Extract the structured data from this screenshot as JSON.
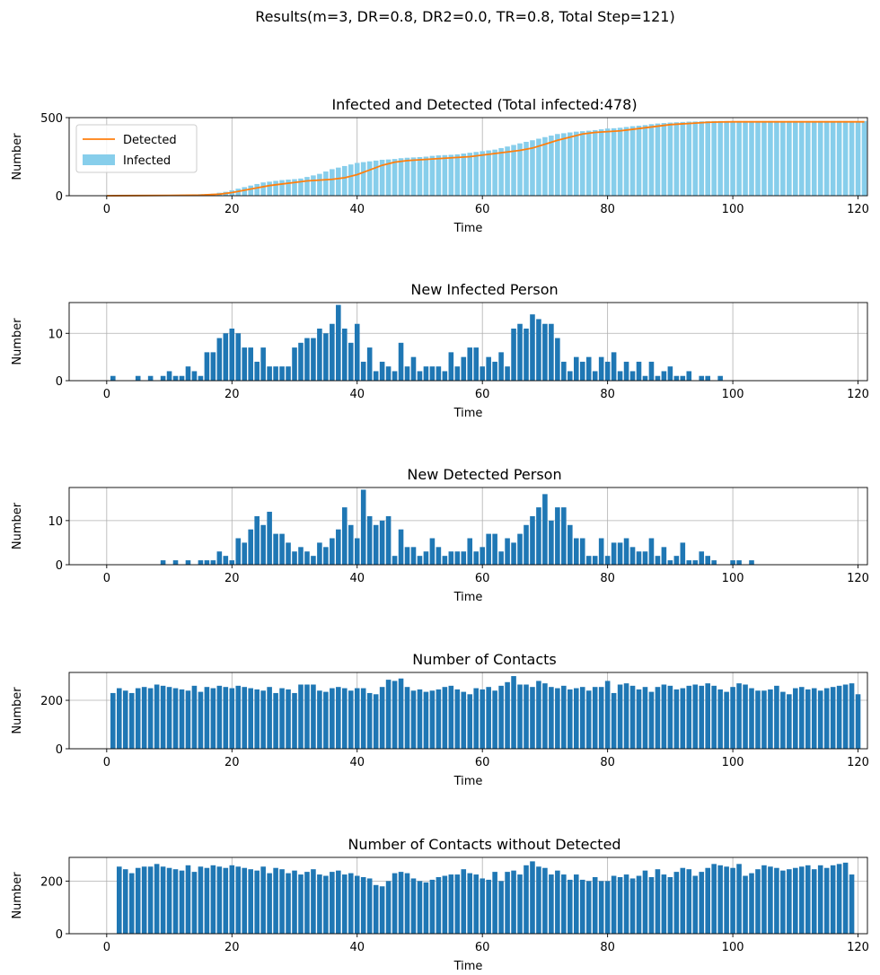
{
  "figure": {
    "suptitle": "Results(m=3, DR=0.8, DR2=0.0, TR=0.8, Total Step=121)",
    "colors": {
      "bar": "#1f77b4",
      "infected_bar": "#87ceeb",
      "detected_line": "#ff7f0e",
      "grid": "#b0b0b0"
    }
  },
  "chart_data": [
    {
      "type": "bar",
      "title": "Infected and Detected (Total infected:478)",
      "xlabel": "Time",
      "ylabel": "Number",
      "xlim": [
        -6,
        121.5
      ],
      "ylim": [
        0,
        500
      ],
      "xticks": [
        0,
        20,
        40,
        60,
        80,
        100,
        120
      ],
      "yticks": [
        0,
        500
      ],
      "grid": true,
      "legend": {
        "placement": "upper-left",
        "entries": [
          "Detected",
          "Infected"
        ]
      },
      "series": [
        {
          "name": "Infected",
          "kind": "bar",
          "x_start": 1,
          "values": [
            1,
            1,
            1,
            1,
            2,
            2,
            3,
            3,
            4,
            5,
            6,
            7,
            8,
            9,
            10,
            11,
            13,
            19,
            25,
            35,
            45,
            55,
            65,
            75,
            85,
            90,
            95,
            100,
            103,
            106,
            110,
            120,
            130,
            140,
            155,
            170,
            180,
            190,
            200,
            210,
            215,
            220,
            225,
            230,
            232,
            235,
            240,
            243,
            245,
            247,
            250,
            255,
            258,
            260,
            262,
            265,
            270,
            275,
            280,
            285,
            290,
            295,
            305,
            315,
            325,
            335,
            345,
            355,
            365,
            375,
            385,
            395,
            400,
            405,
            410,
            413,
            416,
            420,
            425,
            430,
            432,
            435,
            440,
            445,
            448,
            452,
            458,
            462,
            465,
            468,
            470,
            472,
            474,
            475,
            476,
            477,
            478,
            478,
            478,
            478,
            478,
            478,
            478,
            478,
            478,
            478,
            478,
            478,
            478,
            478,
            478,
            478,
            478,
            478,
            478,
            478,
            478,
            478,
            478,
            478,
            478
          ]
        },
        {
          "name": "Detected",
          "kind": "line",
          "x": [
            0,
            5,
            10,
            15,
            18,
            20,
            22,
            24,
            26,
            28,
            30,
            32,
            34,
            36,
            38,
            40,
            42,
            44,
            46,
            48,
            50,
            52,
            54,
            56,
            58,
            60,
            62,
            64,
            66,
            68,
            70,
            72,
            74,
            76,
            78,
            80,
            82,
            84,
            86,
            88,
            90,
            92,
            94,
            96,
            98,
            100,
            102,
            105,
            110,
            115,
            121
          ],
          "values": [
            0,
            1,
            2,
            4,
            10,
            20,
            35,
            50,
            65,
            75,
            85,
            95,
            100,
            105,
            115,
            135,
            165,
            195,
            215,
            225,
            230,
            235,
            240,
            245,
            250,
            260,
            270,
            280,
            290,
            305,
            330,
            355,
            375,
            395,
            405,
            410,
            415,
            425,
            435,
            445,
            455,
            460,
            465,
            470,
            472,
            473,
            473,
            473,
            473,
            473,
            473
          ]
        }
      ]
    },
    {
      "type": "bar",
      "title": "New Infected Person",
      "xlabel": "Time",
      "ylabel": "Number",
      "xlim": [
        -6,
        121.5
      ],
      "ylim": [
        0,
        16.5
      ],
      "xticks": [
        0,
        20,
        40,
        60,
        80,
        100,
        120
      ],
      "yticks": [
        0,
        10
      ],
      "grid": true,
      "series": [
        {
          "name": "",
          "x_start": 1,
          "values": [
            1,
            0,
            0,
            0,
            1,
            0,
            1,
            0,
            1,
            2,
            1,
            1,
            3,
            2,
            1,
            6,
            6,
            9,
            10,
            11,
            10,
            7,
            7,
            4,
            7,
            3,
            3,
            3,
            3,
            7,
            8,
            9,
            9,
            11,
            10,
            12,
            16,
            11,
            8,
            12,
            4,
            7,
            2,
            4,
            3,
            2,
            8,
            3,
            5,
            2,
            3,
            3,
            3,
            2,
            6,
            3,
            5,
            7,
            7,
            3,
            5,
            4,
            6,
            3,
            11,
            12,
            11,
            14,
            13,
            12,
            12,
            9,
            4,
            2,
            5,
            4,
            5,
            2,
            5,
            4,
            6,
            2,
            4,
            2,
            4,
            1,
            4,
            1,
            2,
            3,
            1,
            1,
            2,
            0,
            1,
            1,
            0,
            1
          ]
        }
      ]
    },
    {
      "type": "bar",
      "title": "New Detected Person",
      "xlabel": "Time",
      "ylabel": "Number",
      "xlim": [
        -6,
        121.5
      ],
      "ylim": [
        0,
        17.5
      ],
      "xticks": [
        0,
        20,
        40,
        60,
        80,
        100,
        120
      ],
      "yticks": [
        0,
        10
      ],
      "grid": true,
      "series": [
        {
          "name": "",
          "x_start": 1,
          "values": [
            0,
            0,
            0,
            0,
            0,
            0,
            0,
            0,
            1,
            0,
            1,
            0,
            1,
            0,
            1,
            1,
            1,
            3,
            2,
            1,
            6,
            5,
            8,
            11,
            9,
            12,
            7,
            7,
            5,
            3,
            4,
            3,
            2,
            5,
            4,
            6,
            8,
            13,
            9,
            6,
            17,
            11,
            9,
            10,
            11,
            2,
            8,
            4,
            4,
            2,
            3,
            6,
            4,
            2,
            3,
            3,
            3,
            6,
            3,
            4,
            7,
            7,
            3,
            6,
            5,
            7,
            9,
            11,
            13,
            16,
            10,
            13,
            13,
            9,
            6,
            6,
            2,
            2,
            6,
            2,
            5,
            5,
            6,
            4,
            3,
            3,
            6,
            2,
            4,
            1,
            2,
            5,
            1,
            1,
            3,
            2,
            1,
            0,
            0,
            1,
            1,
            0,
            1
          ]
        }
      ]
    },
    {
      "type": "bar",
      "title": "Number of Contacts",
      "xlabel": "Time",
      "ylabel": "Number",
      "xlim": [
        -6,
        121.5
      ],
      "ylim": [
        0,
        315
      ],
      "xticks": [
        0,
        20,
        40,
        60,
        80,
        100,
        120
      ],
      "yticks": [
        0,
        200
      ],
      "grid": true,
      "series": [
        {
          "name": "",
          "x_start": 1,
          "values": [
            230,
            250,
            240,
            230,
            250,
            255,
            250,
            265,
            260,
            255,
            250,
            245,
            240,
            260,
            235,
            255,
            250,
            260,
            255,
            250,
            260,
            255,
            250,
            245,
            240,
            255,
            230,
            250,
            245,
            230,
            265,
            265,
            265,
            240,
            235,
            250,
            255,
            250,
            240,
            250,
            250,
            230,
            225,
            255,
            285,
            280,
            290,
            255,
            240,
            245,
            235,
            240,
            245,
            255,
            260,
            245,
            235,
            225,
            250,
            245,
            255,
            240,
            260,
            275,
            300,
            265,
            265,
            255,
            280,
            270,
            255,
            250,
            260,
            245,
            250,
            255,
            240,
            255,
            255,
            280,
            230,
            265,
            270,
            260,
            245,
            255,
            235,
            255,
            265,
            260,
            245,
            250,
            260,
            265,
            260,
            270,
            260,
            245,
            235,
            255,
            270,
            265,
            250,
            240,
            240,
            245,
            260,
            235,
            225,
            250,
            255,
            245,
            250,
            240,
            250,
            255,
            260,
            265,
            270,
            225
          ]
        }
      ]
    },
    {
      "type": "bar",
      "title": "Number of Contacts without Detected",
      "xlabel": "Time",
      "ylabel": "Number",
      "xlim": [
        -6,
        121.5
      ],
      "ylim": [
        0,
        290
      ],
      "xticks": [
        0,
        20,
        40,
        60,
        80,
        100,
        120
      ],
      "yticks": [
        0,
        200
      ],
      "grid": true,
      "series": [
        {
          "name": "",
          "x_start": 2,
          "values": [
            255,
            245,
            230,
            250,
            255,
            255,
            265,
            255,
            250,
            245,
            240,
            260,
            235,
            255,
            250,
            260,
            255,
            250,
            260,
            255,
            250,
            245,
            240,
            255,
            230,
            250,
            245,
            230,
            240,
            225,
            235,
            245,
            225,
            220,
            235,
            240,
            225,
            230,
            220,
            215,
            210,
            185,
            180,
            200,
            230,
            235,
            230,
            210,
            200,
            195,
            205,
            215,
            220,
            225,
            225,
            245,
            230,
            225,
            210,
            205,
            235,
            200,
            235,
            240,
            225,
            260,
            275,
            255,
            250,
            225,
            240,
            225,
            205,
            225,
            205,
            200,
            215,
            200,
            200,
            220,
            215,
            225,
            210,
            220,
            240,
            215,
            245,
            225,
            215,
            235,
            250,
            245,
            220,
            235,
            250,
            265,
            260,
            255,
            250,
            265,
            220,
            230,
            245,
            260,
            255,
            250,
            240,
            245,
            250,
            255,
            260,
            245,
            260,
            250,
            260,
            265,
            270,
            225
          ]
        }
      ]
    }
  ]
}
